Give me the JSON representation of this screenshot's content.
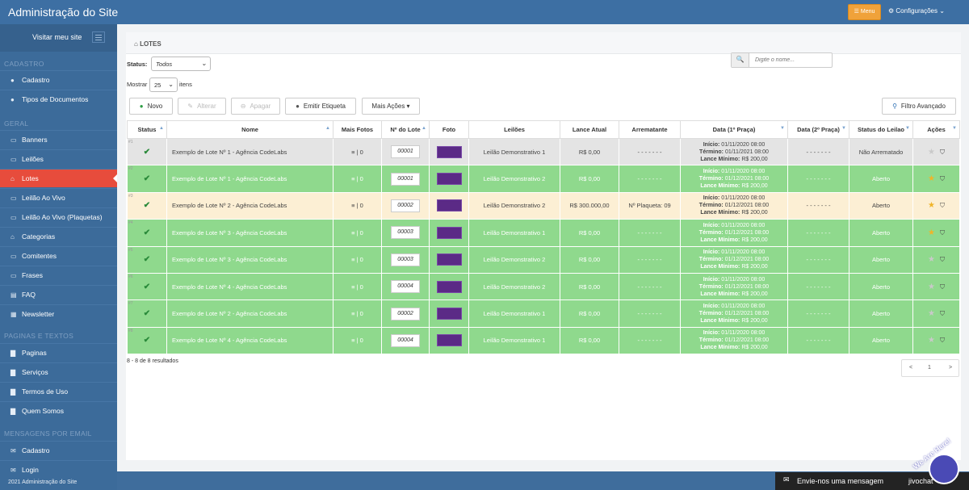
{
  "app": {
    "title": "Administração do Site",
    "menu_button": "Menu",
    "config_label": "Configurações ⌄"
  },
  "sidebar": {
    "visit": "Visitar meu site",
    "sections": {
      "cadastro": "CADASTRO",
      "geral": "GERAL",
      "paginas": "PAGINAS E TEXTOS",
      "mensagens": "MENSAGENS POR EMAIL"
    },
    "items": [
      {
        "label": "Cadastro",
        "icon": "user-icon"
      },
      {
        "label": "Tipos de Documentos",
        "icon": "user-icon"
      },
      {
        "label": "Banners",
        "icon": "desktop-icon"
      },
      {
        "label": "Leilões",
        "icon": "desktop-icon"
      },
      {
        "label": "Lotes",
        "icon": "inbox-icon"
      },
      {
        "label": "Leilão Ao Vivo",
        "icon": "desktop-icon"
      },
      {
        "label": "Leilão Ao Vivo (Plaquetas)",
        "icon": "desktop-icon"
      },
      {
        "label": "Categorias",
        "icon": "inbox-icon"
      },
      {
        "label": "Comitentes",
        "icon": "monitor-icon"
      },
      {
        "label": "Frases",
        "icon": "monitor-icon"
      },
      {
        "label": "FAQ",
        "icon": "chat-icon"
      },
      {
        "label": "Newsletter",
        "icon": "keyboard-icon"
      },
      {
        "label": "Paginas",
        "icon": "file-icon"
      },
      {
        "label": "Serviços",
        "icon": "file-icon"
      },
      {
        "label": "Termos de Uso",
        "icon": "file-icon"
      },
      {
        "label": "Quem Somos",
        "icon": "file-icon"
      },
      {
        "label": "Cadastro",
        "icon": "envelope-icon"
      },
      {
        "label": "Login",
        "icon": "envelope-icon"
      }
    ],
    "footer": "2021 Administração do Site"
  },
  "panel": {
    "title": "LOTES",
    "status_label": "Status:",
    "status_value": "Todos",
    "show_label": "Mostrar",
    "show_value": "25",
    "items_label": "itens",
    "search_placeholder": "Digite o nome...",
    "buttons": {
      "novo": "Novo",
      "alterar": "Alterar",
      "apagar": "Apagar",
      "emitir": "Emitir Etiqueta",
      "mais": "Mais Ações",
      "filtro": "Filtro Avançado"
    }
  },
  "table": {
    "headers": [
      "Status",
      "Nome",
      "Mais Fotos",
      "Nº do Lote",
      "Foto",
      "Leilões",
      "Lance Atual",
      "Arrematante",
      "Data (1º Praça)",
      "Data (2º Praça)",
      "Status do Leilao",
      "Ações"
    ],
    "rows": [
      {
        "idx": "#1",
        "nome": "Exemplo de Lote Nº 1 - Agência CodeLabs",
        "fotos": "≡ | 0",
        "lote": "00001",
        "leilao": "Leilão Demonstrativo 1",
        "lance": "R$ 0,00",
        "arrematante": "- - - - - - -",
        "inicio": "01/11/2020 08:00",
        "termino": "01/11/2021 08:00",
        "lance_min": "R$ 200,00",
        "data2": "- - - - - - -",
        "status": "Não Arrematado",
        "tone": "gy",
        "star": "#c9c9c9"
      },
      {
        "idx": "#2",
        "nome": "Exemplo de Lote Nº 1 - Agência CodeLabs",
        "fotos": "≡ | 0",
        "lote": "00001",
        "leilao": "Leilão Demonstrativo 2",
        "lance": "R$ 0,00",
        "arrematante": "- - - - - - -",
        "inicio": "01/11/2020 08:00",
        "termino": "01/12/2021 08:00",
        "lance_min": "R$ 200,00",
        "data2": "- - - - - - -",
        "status": "Aberto",
        "tone": "gr",
        "star": "#f0b429"
      },
      {
        "idx": "#3",
        "nome": "Exemplo de Lote Nº 2 - Agência CodeLabs",
        "fotos": "≡ | 0",
        "lote": "00002",
        "leilao": "Leilão Demonstrativo 2",
        "lance": "R$ 300.000,00",
        "arrematante": "Nº Plaqueta: 09",
        "inicio": "01/11/2020 08:00",
        "termino": "01/12/2021 08:00",
        "lance_min": "R$ 200,00",
        "data2": "- - - - - - -",
        "status": "Aberto",
        "tone": "ye",
        "star": "#f0b429"
      },
      {
        "idx": "#4",
        "nome": "Exemplo de Lote Nº 3 - Agência CodeLabs",
        "fotos": "≡ | 0",
        "lote": "00003",
        "leilao": "Leilão Demonstrativo 1",
        "lance": "R$ 0,00",
        "arrematante": "- - - - - - -",
        "inicio": "01/11/2020 08:00",
        "termino": "01/12/2021 08:00",
        "lance_min": "R$ 200,00",
        "data2": "- - - - - - -",
        "status": "Aberto",
        "tone": "gr",
        "star": "#f0b429"
      },
      {
        "idx": "#5",
        "nome": "Exemplo de Lote Nº 3 - Agência CodeLabs",
        "fotos": "≡ | 0",
        "lote": "00003",
        "leilao": "Leilão Demonstrativo 2",
        "lance": "R$ 0,00",
        "arrematante": "- - - - - - -",
        "inicio": "01/11/2020 08:00",
        "termino": "01/12/2021 08:00",
        "lance_min": "R$ 200,00",
        "data2": "- - - - - - -",
        "status": "Aberto",
        "tone": "gr",
        "star": "#c9c9c9"
      },
      {
        "idx": "#6",
        "nome": "Exemplo de Lote Nº 4 - Agência CodeLabs",
        "fotos": "≡ | 0",
        "lote": "00004",
        "leilao": "Leilão Demonstrativo 2",
        "lance": "R$ 0,00",
        "arrematante": "- - - - - - -",
        "inicio": "01/11/2020 08:00",
        "termino": "01/12/2021 08:00",
        "lance_min": "R$ 200,00",
        "data2": "- - - - - - -",
        "status": "Aberto",
        "tone": "gr",
        "star": "#c9c9c9"
      },
      {
        "idx": "#7",
        "nome": "Exemplo de Lote Nº 2 - Agência CodeLabs",
        "fotos": "≡ | 0",
        "lote": "00002",
        "leilao": "Leilão Demonstrativo 1",
        "lance": "R$ 0,00",
        "arrematante": "- - - - - - -",
        "inicio": "01/11/2020 08:00",
        "termino": "01/12/2021 08:00",
        "lance_min": "R$ 200,00",
        "data2": "- - - - - - -",
        "status": "Aberto",
        "tone": "gr",
        "star": "#c9c9c9"
      },
      {
        "idx": "#8",
        "nome": "Exemplo de Lote Nº 4 - Agência CodeLabs",
        "fotos": "≡ | 0",
        "lote": "00004",
        "leilao": "Leilão Demonstrativo 1",
        "lance": "R$ 0,00",
        "arrematante": "- - - - - - -",
        "inicio": "01/11/2020 08:00",
        "termino": "01/12/2021 08:00",
        "lance_min": "R$ 200,00",
        "data2": "- - - - - - -",
        "status": "Aberto",
        "tone": "gr",
        "star": "#c9c9c9"
      }
    ],
    "labels": {
      "inicio": "Início:",
      "termino": "Término:",
      "lance_min": "Lance Mínimo:"
    }
  },
  "results": "8 - 8 de 8 resultados",
  "pager": {
    "prev": "<",
    "page": "1",
    "next": ">"
  },
  "chat": {
    "text": "Envie-nos uma mensagem",
    "brand": "jivochat",
    "badge": "We Are Here!"
  }
}
